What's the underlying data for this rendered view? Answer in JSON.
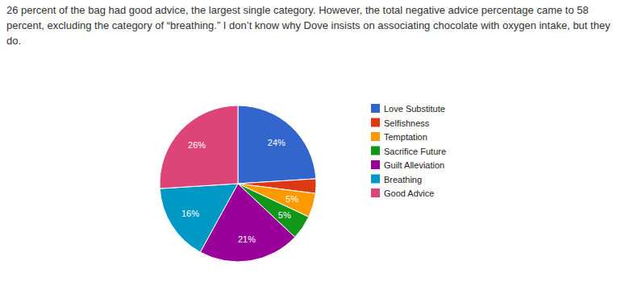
{
  "chart_data": {
    "type": "pie",
    "annotations": [
      "26 percent of the bag had good advice, the largest single category. However, the total negative advice percentage came to 58 percent, excluding the category of “breathing.” I don’t know why Dove insists on associating chocolate with oxygen intake, but they do."
    ],
    "categories": [
      "Love Substitute",
      "Selfishness",
      "Temptation",
      "Sacrifice Future",
      "Guilt Alleviation",
      "Breathing",
      "Good Advice"
    ],
    "values": [
      24,
      3,
      5,
      5,
      21,
      16,
      26
    ],
    "value_labels": [
      "24%",
      null,
      "5%",
      "5%",
      "21%",
      "16%",
      "26%"
    ],
    "colors": [
      "#3366cc",
      "#dc3912",
      "#ff9900",
      "#109618",
      "#990099",
      "#0099c6",
      "#dd4477"
    ],
    "data_labels": true,
    "legend": "right"
  }
}
